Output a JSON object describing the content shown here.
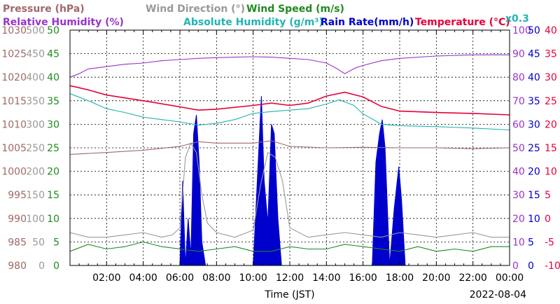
{
  "chart_data": {
    "type": "line",
    "date": "2022-08-04",
    "xlabel": "Time (JST)",
    "x_ticks": [
      "02:00",
      "04:00",
      "06:00",
      "08:00",
      "10:00",
      "12:00",
      "14:00",
      "16:00",
      "18:00",
      "20:00",
      "22:00",
      "00:00"
    ],
    "xlim_hours": [
      0,
      24
    ],
    "grid": true,
    "legend": [
      {
        "text": "Pressure (hPa)",
        "color": "#a06868"
      },
      {
        "text": "Wind Direction (°)",
        "color": "#999999"
      },
      {
        "text": "Wind Speed (m/s)",
        "color": "#1f8a1f"
      },
      {
        "text": "Relative Humidity (%)",
        "color": "#9933cc"
      },
      {
        "text": "Absolute Humidity (g/m³)",
        "color": "#22b3b3"
      },
      {
        "text": "Rain Rate(mm/h)",
        "color": "#0000cc"
      },
      {
        "text": "Temperature (°C)",
        "color": "#e6003a"
      }
    ],
    "rain_scale_note": "x0.3",
    "axes": {
      "pressure": {
        "color": "#a06868",
        "ticks": [
          "980",
          "985",
          "990",
          "995",
          "1000",
          "1005",
          "1010",
          "1015",
          "1020",
          "1025",
          "1030"
        ]
      },
      "wind_direction": {
        "color": "#999999",
        "ticks": [
          "0",
          "50",
          "100",
          "150",
          "200",
          "250",
          "300",
          "350",
          "400",
          "450",
          "500"
        ]
      },
      "wind_speed": {
        "color": "#1f8a1f",
        "ticks": [
          "0",
          "5",
          "10",
          "15",
          "20",
          "25",
          "30",
          "35",
          "40",
          "45",
          "50"
        ]
      },
      "humidity": {
        "color": "#9933cc",
        "ticks": [
          "0",
          "10",
          "20",
          "30",
          "40",
          "50",
          "60",
          "70",
          "80",
          "90",
          "100"
        ]
      },
      "rain_rate": {
        "color": "#0000cc",
        "ticks": [
          "0",
          "5",
          "10",
          "15",
          "20",
          "25",
          "30",
          "35",
          "40",
          "45",
          "50"
        ]
      },
      "temperature": {
        "color": "#e6003a",
        "ticks": [
          "-10",
          "-5",
          "0",
          "5",
          "10",
          "15",
          "20",
          "25",
          "30",
          "35",
          "40"
        ]
      }
    },
    "series": [
      {
        "name": "Pressure",
        "axis": "pressure",
        "ylim": [
          980,
          1030
        ],
        "x": [
          0,
          2,
          4,
          6,
          7,
          8,
          10,
          11,
          12,
          14,
          16,
          18,
          20,
          22,
          24
        ],
        "y": [
          1003.6,
          1004.0,
          1004.5,
          1005.3,
          1006.3,
          1006.0,
          1006.0,
          1006.5,
          1005.3,
          1005.0,
          1005.1,
          1005.0,
          1005.0,
          1004.8,
          1005.0
        ]
      },
      {
        "name": "Relative Humidity",
        "axis": "humidity",
        "ylim": [
          0,
          100
        ],
        "x": [
          0,
          0.5,
          1,
          2,
          3,
          4,
          5,
          6,
          7,
          8,
          9,
          10,
          11,
          12,
          13,
          14,
          14.6,
          15,
          15.6,
          16,
          17,
          18,
          20,
          22,
          24
        ],
        "y": [
          80,
          81.5,
          83.5,
          84.5,
          85.5,
          86,
          87,
          87.5,
          88,
          88.3,
          88.5,
          88.7,
          88.5,
          88,
          87.5,
          86,
          83.5,
          81.5,
          84,
          85,
          87,
          88,
          89,
          89.5,
          89.5
        ]
      },
      {
        "name": "Temperature",
        "axis": "temperature",
        "ylim": [
          -10,
          40
        ],
        "x": [
          0,
          1,
          2,
          4,
          6,
          7,
          8,
          10,
          11,
          12,
          13,
          14,
          15,
          16,
          17,
          18,
          20,
          22,
          24
        ],
        "y": [
          28.2,
          27.3,
          26.2,
          25.0,
          23.7,
          23.0,
          23.2,
          24.0,
          24.5,
          24.0,
          24.5,
          26.0,
          26.8,
          25.8,
          23.8,
          22.8,
          22.5,
          22.3,
          22.0
        ]
      },
      {
        "name": "Absolute Humidity",
        "axis": "wind_speed",
        "ylim": [
          0,
          50
        ],
        "x": [
          0,
          1,
          2,
          3,
          4,
          5,
          6,
          7,
          8,
          9,
          10,
          11,
          12,
          13,
          14,
          14.7,
          15.5,
          16,
          17,
          18,
          20,
          22,
          24
        ],
        "y": [
          36.5,
          35.0,
          33.3,
          32.5,
          31.5,
          31.0,
          30.5,
          29.8,
          30.2,
          31.0,
          32.3,
          32.7,
          33.0,
          33.3,
          34.3,
          35.2,
          34.0,
          32.2,
          30.0,
          29.7,
          29.5,
          29.2,
          28.8
        ]
      },
      {
        "name": "Wind Direction",
        "axis": "wind_direction",
        "ylim": [
          0,
          500
        ],
        "x": [
          0,
          1,
          2,
          3,
          4,
          5,
          5.6,
          6,
          6.3,
          6.6,
          6.9,
          7.2,
          7.5,
          8,
          9,
          10,
          10.4,
          10.8,
          11.2,
          11.6,
          12,
          13,
          14,
          15,
          16,
          17,
          18,
          19,
          20,
          21,
          22,
          23,
          24
        ],
        "y": [
          70,
          60,
          60,
          65,
          70,
          60,
          65,
          80,
          230,
          260,
          240,
          150,
          90,
          70,
          60,
          75,
          170,
          240,
          230,
          180,
          80,
          60,
          65,
          70,
          65,
          60,
          70,
          65,
          60,
          65,
          70,
          60,
          60
        ]
      },
      {
        "name": "Wind Speed",
        "axis": "wind_speed",
        "ylim": [
          0,
          50
        ],
        "x": [
          0,
          1,
          2,
          3,
          4,
          5,
          6,
          7,
          8,
          9,
          10,
          11,
          12,
          13,
          14,
          15,
          16,
          17,
          18,
          19,
          20,
          21,
          22,
          23,
          24
        ],
        "y": [
          3.0,
          4.5,
          3.5,
          4.0,
          5.0,
          4.0,
          3.5,
          3.0,
          3.5,
          4.0,
          3.0,
          3.0,
          4.0,
          3.5,
          3.5,
          4.5,
          4.0,
          3.5,
          3.0,
          4.0,
          3.0,
          3.5,
          3.0,
          4.0,
          4.0
        ]
      },
      {
        "name": "Rain Rate",
        "axis": "rain_rate",
        "ylim": [
          0,
          50
        ],
        "fill": true,
        "x": [
          0,
          6.0,
          6.15,
          6.3,
          6.45,
          6.6,
          6.75,
          6.9,
          7.05,
          7.2,
          7.4,
          10.0,
          10.2,
          10.45,
          10.6,
          10.8,
          11.0,
          11.15,
          11.35,
          11.55,
          11.8,
          16.5,
          16.7,
          16.9,
          17.05,
          17.2,
          17.45,
          17.7,
          17.95,
          18.1,
          18.3,
          18.6,
          24
        ],
        "y": [
          0,
          0,
          18,
          0,
          10,
          2,
          28,
          32,
          22,
          5,
          0,
          0,
          16,
          36,
          18,
          9,
          30,
          28,
          10,
          0,
          0,
          0,
          22,
          28,
          31,
          25,
          0,
          12,
          21,
          14,
          0,
          0,
          0
        ]
      }
    ]
  }
}
